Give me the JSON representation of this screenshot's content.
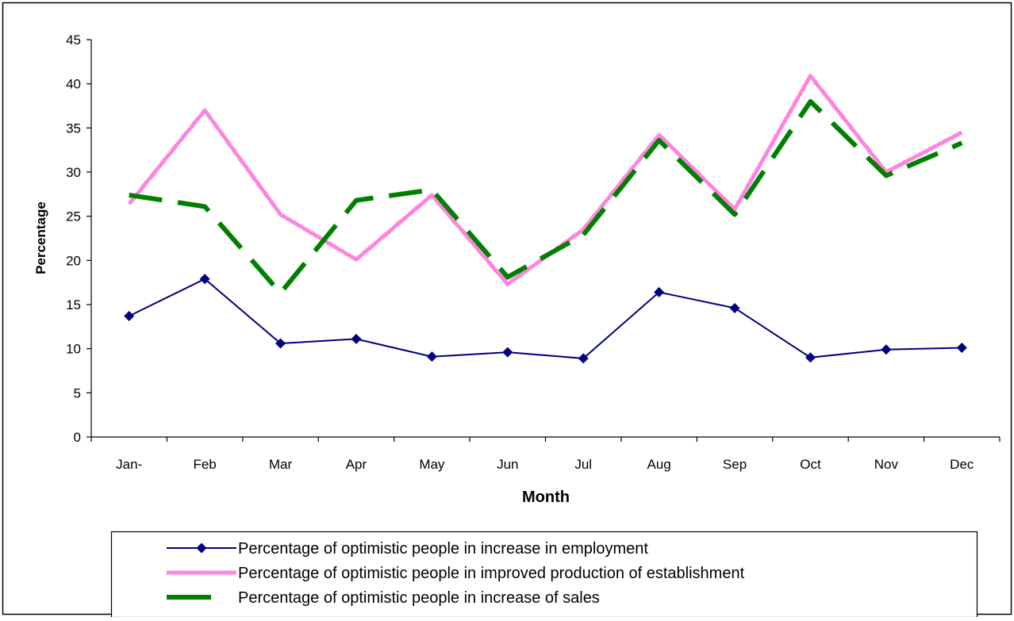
{
  "chart_data": {
    "type": "line",
    "xlabel": "Month",
    "ylabel": "Percentage",
    "categories": [
      "Jan-",
      "Feb",
      "Mar",
      "Apr",
      "May",
      "Jun",
      "Jul",
      "Aug",
      "Sep",
      "Oct",
      "Nov",
      "Dec"
    ],
    "ylim": [
      0,
      45
    ],
    "yticks": [
      "0",
      "5",
      "10",
      "15",
      "20",
      "25",
      "30",
      "35",
      "40",
      "45"
    ],
    "grid": false,
    "legend_position": "bottom",
    "series": [
      {
        "name": "Percentage of optimistic people in increase in employment",
        "values": [
          13.7,
          17.9,
          10.6,
          11.1,
          9.1,
          9.6,
          8.9,
          16.4,
          14.6,
          9.0,
          9.9,
          10.1
        ],
        "color": "#000080",
        "style": "solid-diamond"
      },
      {
        "name": "Percentage of optimistic people in improved production of establishment",
        "values": [
          26.4,
          37.0,
          25.2,
          20.1,
          27.4,
          17.3,
          23.5,
          34.2,
          25.8,
          40.9,
          30.0,
          34.5
        ],
        "color": "#ff66cc",
        "style": "dotted-pattern"
      },
      {
        "name": "Percentage of optimistic people in increase of sales",
        "values": [
          27.4,
          26.1,
          16.3,
          26.8,
          28.0,
          18.1,
          22.9,
          33.6,
          25.2,
          38.0,
          29.6,
          33.3
        ],
        "color": "#008000",
        "style": "dashed"
      }
    ]
  }
}
